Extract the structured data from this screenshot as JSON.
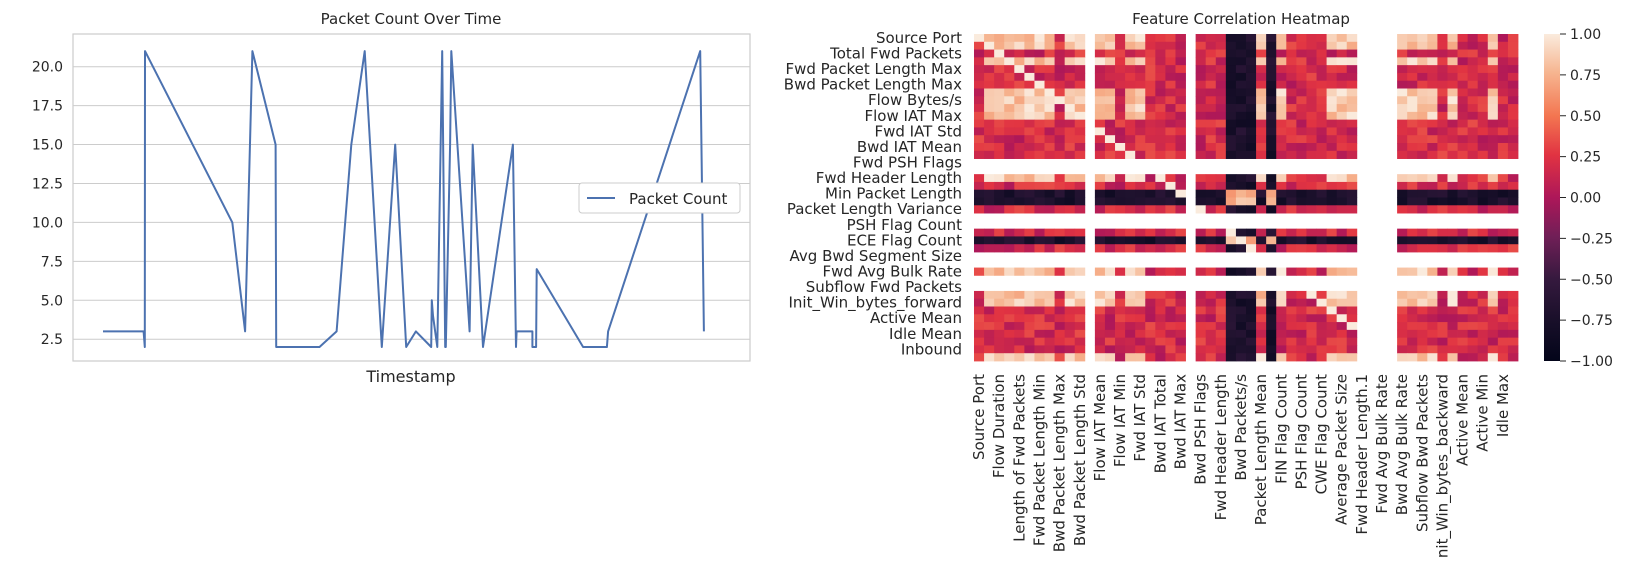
{
  "chart_data": [
    {
      "type": "line",
      "title": "Packet Count Over Time",
      "xlabel": "Timestamp",
      "ylabel": "",
      "ylim": [
        1.1,
        22.1
      ],
      "yticks": [
        2.5,
        5.0,
        7.5,
        10.0,
        12.5,
        15.0,
        17.5,
        20.0
      ],
      "ytick_labels": [
        "2.5",
        "5.0",
        "7.5",
        "10.0",
        "12.5",
        "15.0",
        "17.5",
        "20.0"
      ],
      "grid": true,
      "legend": {
        "placement": "center-right",
        "entries": [
          "Packet Count"
        ]
      },
      "series": [
        {
          "name": "Packet Count",
          "color": "#4c72b0",
          "x": [
            0.0,
            0.0665,
            0.0685,
            0.0688,
            0.212,
            0.233,
            0.245,
            0.283,
            0.284,
            0.355,
            0.383,
            0.407,
            0.429,
            0.457,
            0.479,
            0.497,
            0.513,
            0.538,
            0.539,
            0.541,
            0.548,
            0.556,
            0.561,
            0.562,
            0.569,
            0.571,
            0.601,
            0.606,
            0.623,
            0.672,
            0.677,
            0.678,
            0.704,
            0.704,
            0.71,
            0.711,
            0.787,
            0.816,
            0.826,
            0.828,
            0.979,
            0.985
          ],
          "y": [
            3,
            3,
            2,
            21,
            10,
            3,
            21,
            15,
            2,
            2,
            3,
            15,
            21,
            2,
            15,
            2,
            3,
            2,
            5,
            4,
            2,
            21,
            2,
            2,
            15,
            21,
            3,
            15,
            2,
            15,
            2,
            3,
            3,
            2,
            2,
            7,
            2,
            2,
            2,
            3,
            21,
            3
          ]
        }
      ]
    },
    {
      "type": "heatmap",
      "title": "Feature Correlation Heatmap",
      "colorbar": {
        "range": [
          -1.0,
          1.0
        ],
        "ticks": [
          "1.00",
          "0.75",
          "0.50",
          "0.25",
          "0.00",
          "−0.25",
          "−0.50",
          "−0.75",
          "−1.00"
        ]
      },
      "row_labels": [
        "Source Port",
        "Total Fwd Packets",
        "Fwd Packet Length Max",
        "Bwd Packet Length Max",
        "Flow Bytes/s",
        "Flow IAT Max",
        "Fwd IAT Std",
        "Bwd IAT Mean",
        "Fwd PSH Flags",
        "Fwd Header Length",
        "Min Packet Length",
        "Packet Length Variance",
        "PSH Flag Count",
        "ECE Flag Count",
        "Avg Bwd Segment Size",
        "Fwd Avg Bulk Rate",
        "Subflow Fwd Packets",
        "Init_Win_bytes_forward",
        "Active Mean",
        "Idle Mean",
        "Inbound"
      ],
      "col_labels": [
        "Source Port",
        "Flow Duration",
        "Length of Fwd Packets",
        "Fwd Packet Length Min",
        "Bwd Packet Length Max",
        "Bwd Packet Length Std",
        "Flow IAT Mean",
        "Flow IAT Min",
        "Fwd IAT Std",
        "Bwd IAT Total",
        "Bwd IAT Max",
        "Bwd PSH Flags",
        "Fwd Header Length",
        "Bwd Packets/s",
        "Packet Length Mean",
        "FIN Flag Count",
        "PSH Flag Count",
        "CWE Flag Count",
        "Average Packet Size",
        "Fwd Header Length.1",
        "Fwd Avg Bulk Rate",
        "Bwd Avg Bulk Rate",
        "Subflow Bwd Packets",
        "Init_Win_bytes_backward",
        "Active Mean",
        "Active Min",
        "Idle Max"
      ]
    }
  ]
}
